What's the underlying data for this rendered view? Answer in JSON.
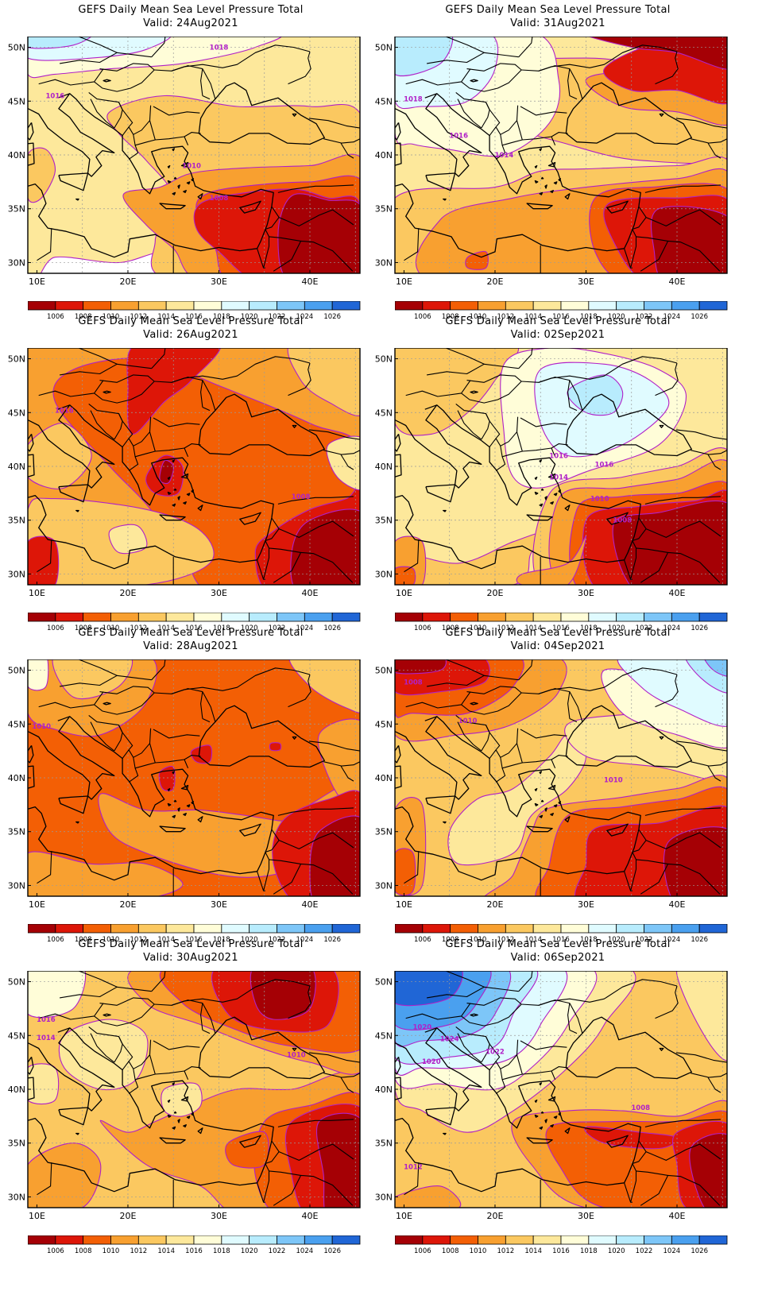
{
  "panels": [
    {
      "title": "GEFS Daily Mean Sea Level Pressure Total",
      "valid": "Valid: 24Aug2021",
      "contour_labels": [
        "1018",
        "1016",
        "1010",
        "1008"
      ],
      "scheme": "aug24"
    },
    {
      "title": "GEFS Daily Mean Sea Level Pressure Total",
      "valid": "Valid: 31Aug2021",
      "contour_labels": [
        "1018",
        "1016",
        "1014"
      ],
      "scheme": "aug31"
    },
    {
      "title": "GEFS Daily Mean Sea Level Pressure Total",
      "valid": "Valid: 26Aug2021",
      "contour_labels": [
        "1016",
        "1008"
      ],
      "scheme": "aug26"
    },
    {
      "title": "GEFS Daily Mean Sea Level Pressure Total",
      "valid": "Valid: 02Sep2021",
      "contour_labels": [
        "1016",
        "1016",
        "1014",
        "1010",
        "1008"
      ],
      "scheme": "sep02"
    },
    {
      "title": "GEFS Daily Mean Sea Level Pressure Total",
      "valid": "Valid: 28Aug2021",
      "contour_labels": [
        "1010"
      ],
      "scheme": "aug28"
    },
    {
      "title": "GEFS Daily Mean Sea Level Pressure Total",
      "valid": "Valid: 04Sep2021",
      "contour_labels": [
        "1008",
        "1010",
        "1010"
      ],
      "scheme": "sep04"
    },
    {
      "title": "GEFS Daily Mean Sea Level Pressure Total",
      "valid": "Valid: 30Aug2021",
      "contour_labels": [
        "1016",
        "1014",
        "1010"
      ],
      "scheme": "aug30"
    },
    {
      "title": "GEFS Daily Mean Sea Level Pressure Total",
      "valid": "Valid: 06Sep2021",
      "contour_labels": [
        "1020",
        "1024",
        "1022",
        "1020",
        "1008",
        "1012"
      ],
      "scheme": "sep06"
    }
  ],
  "axes": {
    "x_ticks": [
      "10E",
      "20E",
      "30E",
      "40E"
    ],
    "y_ticks": [
      "50N",
      "45N",
      "40N",
      "35N",
      "30N"
    ]
  },
  "colorbar": {
    "labels": [
      "1006",
      "1008",
      "1010",
      "1012",
      "1014",
      "1016",
      "1018",
      "1020",
      "1022",
      "1024",
      "1026"
    ],
    "colors": [
      "#a50005",
      "#dd1608",
      "#f35f05",
      "#f8a030",
      "#fbc860",
      "#fde89b",
      "#fffdd8",
      "#e0fbff",
      "#b8ecfd",
      "#7dc6f8",
      "#4aa0ef",
      "#2066d6"
    ]
  },
  "contour_line_color": "#b020c8"
}
